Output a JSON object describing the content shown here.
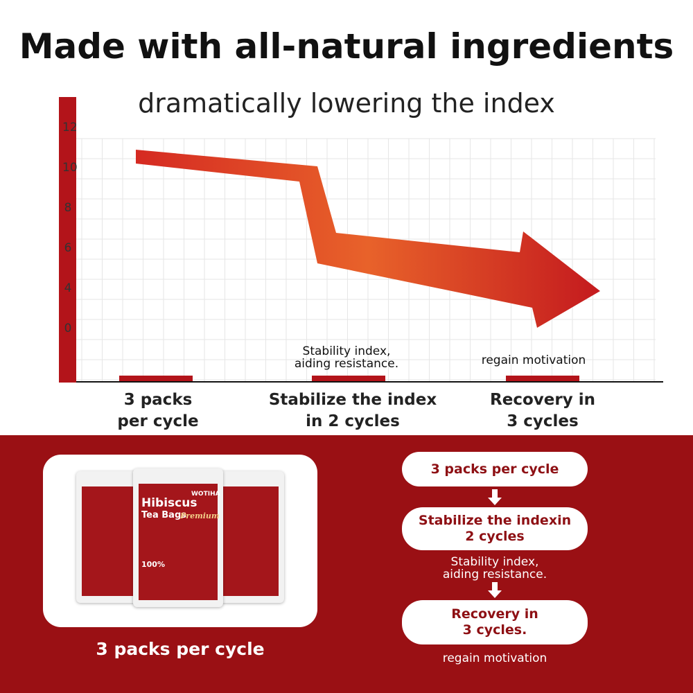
{
  "header": {
    "title": "Made with all-natural ingredients",
    "subtitle": "dramatically lowering the index"
  },
  "graph": {
    "y_labels": [
      "12",
      "10",
      "8",
      "6",
      "4",
      "0"
    ],
    "notes": [
      "Stability index,\naiding resistance.",
      "regain motivation"
    ],
    "stages": [
      "3 packs\nper cycle",
      "Stabilize the index\nin 2 cycles",
      "Recovery in\n3 cycles"
    ]
  },
  "panel": {
    "caption": "3 packs per cycle",
    "product": {
      "brand": "WOTIHA",
      "name": "Hibiscus",
      "kind": "Tea Bags",
      "grade": "Premium",
      "badge": "100%"
    },
    "steps": [
      {
        "label": "3 packs per cycle"
      },
      {
        "label": "Stabilize the indexin\n2 cycles",
        "note": "Stability index,\naiding resistance."
      },
      {
        "label": "Recovery in\n3 cycles.",
        "note": "regain motivation"
      }
    ]
  }
}
